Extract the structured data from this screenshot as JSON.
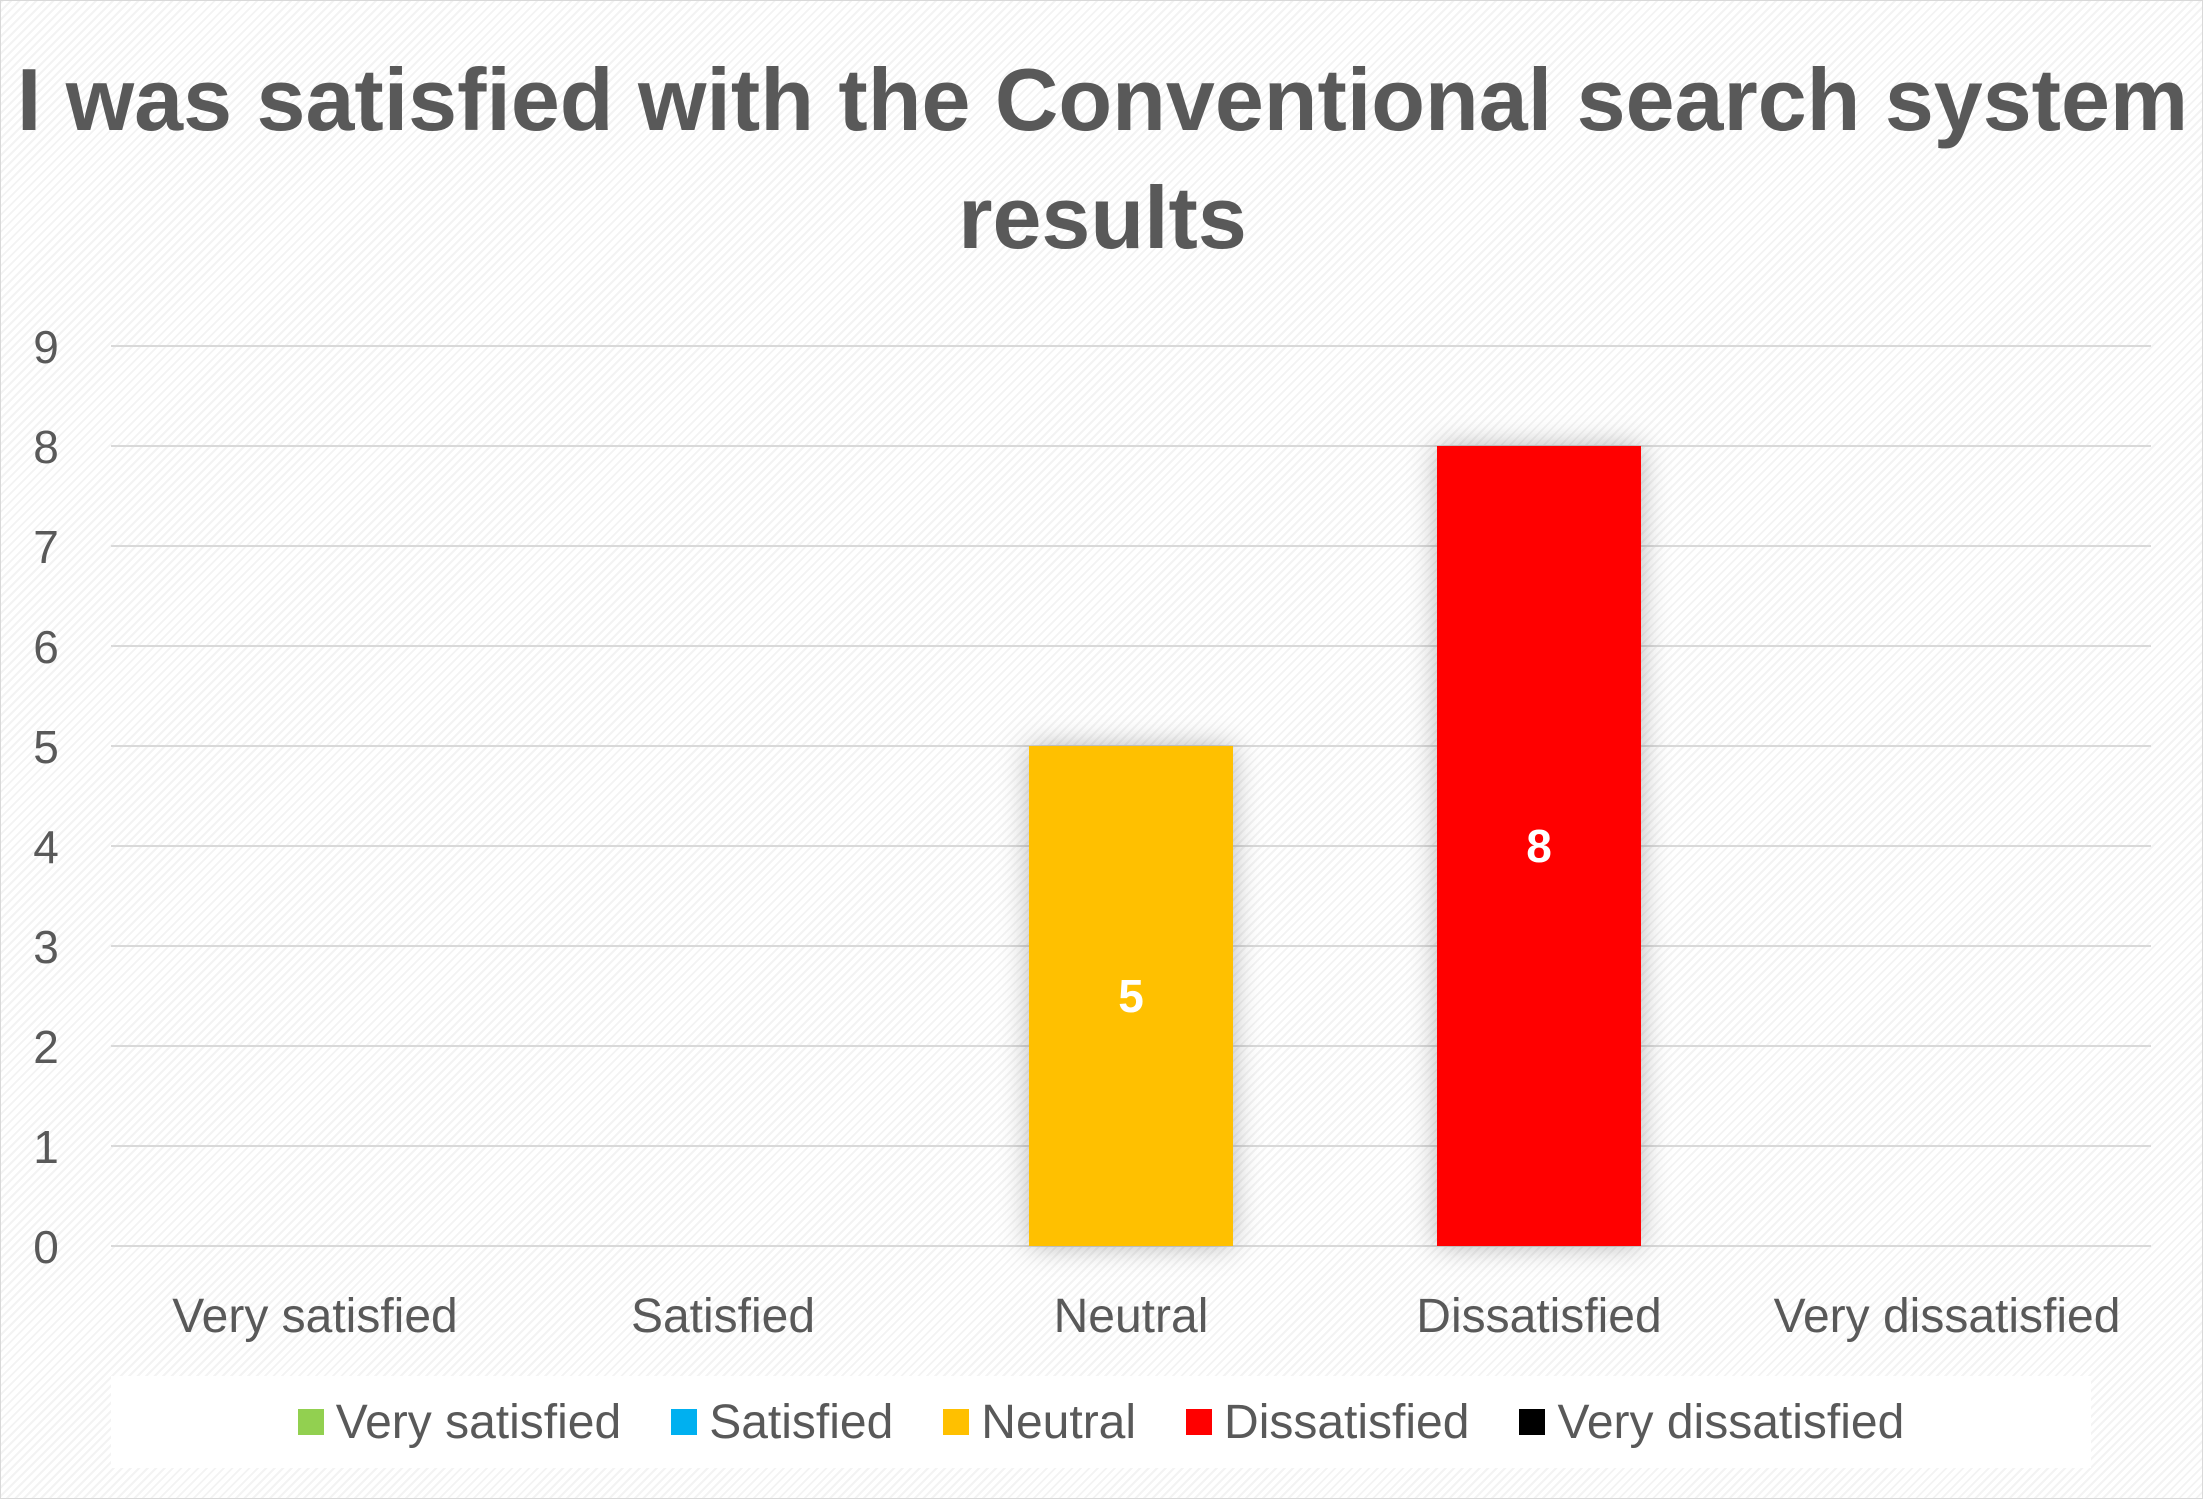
{
  "chart_data": {
    "type": "bar",
    "title": "I was satisfied with the Conventional search system results",
    "categories": [
      "Very satisfied",
      "Satisfied",
      "Neutral",
      "Dissatisfied",
      "Very dissatisfied"
    ],
    "values": [
      0,
      0,
      5,
      8,
      0
    ],
    "data_labels": [
      "",
      "",
      "5",
      "8",
      ""
    ],
    "colors": [
      "#92D050",
      "#00B0F0",
      "#FFC000",
      "#FF0000",
      "#000000"
    ],
    "ylim": [
      0,
      9
    ],
    "yticks": [
      "0",
      "1",
      "2",
      "3",
      "4",
      "5",
      "6",
      "7",
      "8",
      "9"
    ],
    "grid": true,
    "legend_position": "bottom",
    "legend": [
      {
        "label": "Very satisfied",
        "color": "#92D050"
      },
      {
        "label": "Satisfied",
        "color": "#00B0F0"
      },
      {
        "label": "Neutral",
        "color": "#FFC000"
      },
      {
        "label": "Dissatisfied",
        "color": "#FF0000"
      },
      {
        "label": "Very dissatisfied",
        "color": "#000000"
      }
    ]
  }
}
